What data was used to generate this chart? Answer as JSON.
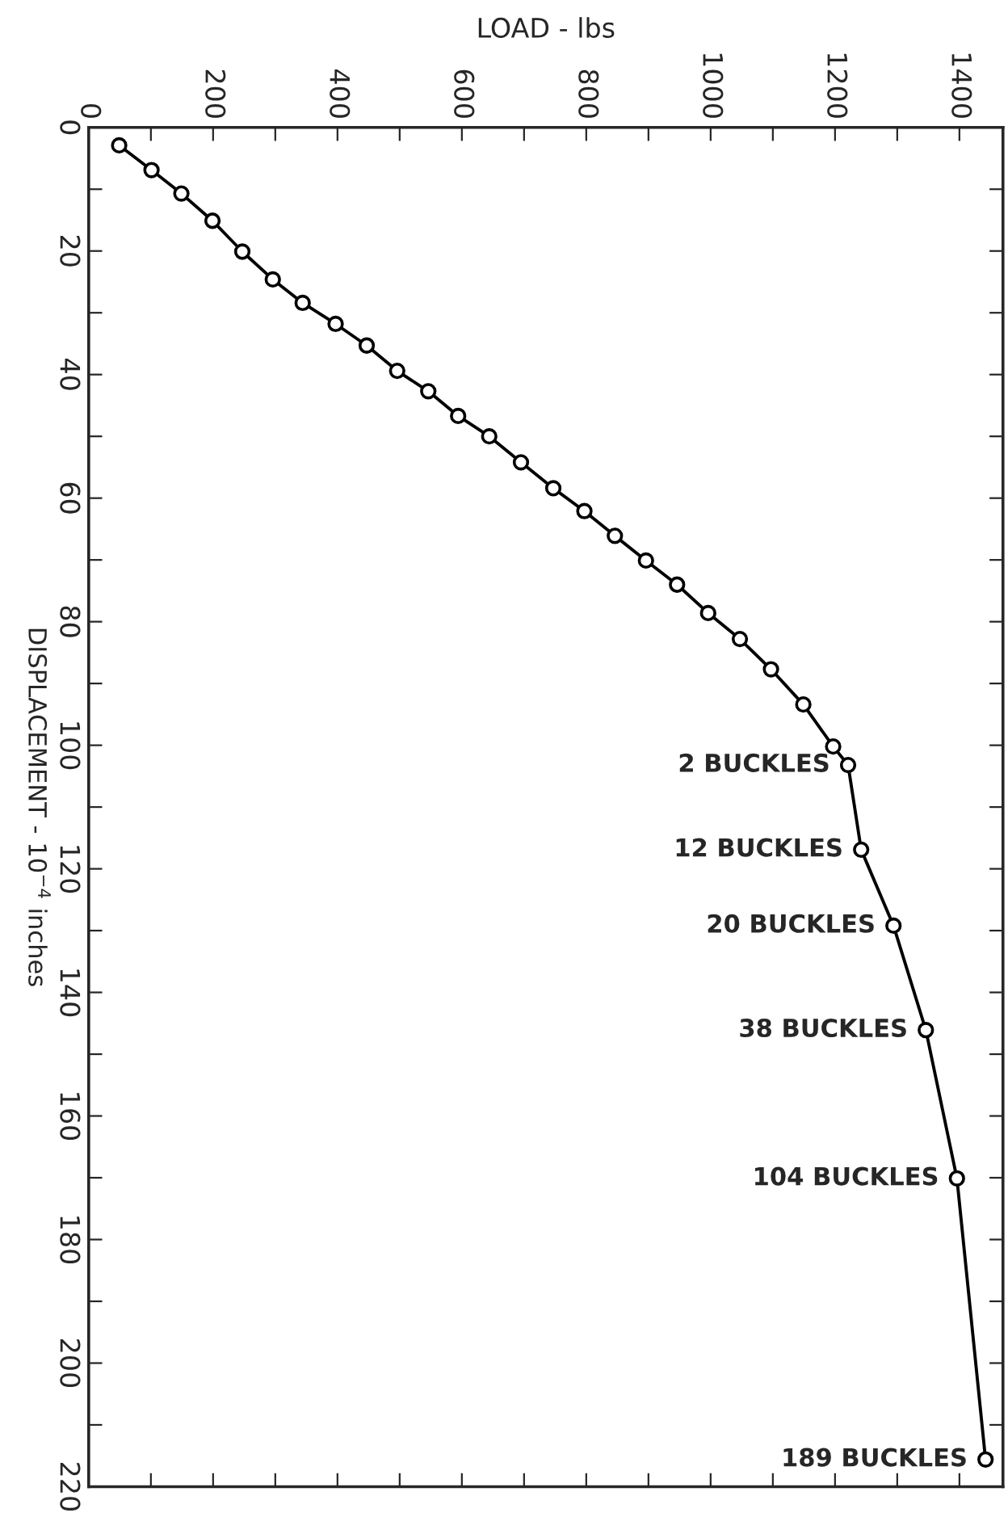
{
  "chart_data": {
    "type": "line",
    "xlabel": "LOAD - lbs",
    "ylabel": "DISPLACEMENT - 10$^{−4}$ inches",
    "series": [
      {
        "color": "#000000",
        "x": [
          49,
          101,
          149,
          199,
          247,
          296,
          344,
          397,
          447,
          496,
          546,
          594,
          644,
          695,
          747,
          797,
          846,
          896,
          946,
          996,
          1047,
          1097,
          1149,
          1197,
          1221,
          1242,
          1294,
          1346,
          1396,
          1442
        ],
        "values": [
          2.9,
          6.9,
          10.7,
          15.1,
          20.1,
          24.6,
          28.4,
          31.8,
          35.3,
          39.4,
          42.7,
          46.7,
          50.0,
          54.2,
          58.4,
          62.1,
          66.1,
          70.1,
          74.0,
          78.6,
          82.8,
          87.7,
          93.4,
          100.2,
          103.2,
          116.9,
          129.2,
          146.1,
          170.1,
          215.6
        ]
      }
    ],
    "xlim": [
      0,
      1470
    ],
    "ylim": [
      220,
      0
    ],
    "xticks": [
      0,
      {
        "value": 100,
        "label": null
      },
      200,
      {
        "value": 300,
        "label": null
      },
      400,
      {
        "value": 500,
        "label": null
      },
      600,
      {
        "value": 700,
        "label": null
      },
      800,
      {
        "value": 900,
        "label": null
      },
      1000,
      {
        "value": 1100,
        "label": null
      },
      1200,
      {
        "value": 1300,
        "label": null
      },
      1400
    ],
    "yticks": [
      0,
      {
        "value": 10,
        "label": null
      },
      20,
      {
        "value": 30,
        "label": null
      },
      40,
      {
        "value": 50,
        "label": null
      },
      60,
      {
        "value": 70,
        "label": null
      },
      80,
      {
        "value": 90,
        "label": null
      },
      100,
      {
        "value": 110,
        "label": null
      },
      120,
      {
        "value": 130,
        "label": null
      },
      140,
      {
        "value": 150,
        "label": null
      },
      160,
      {
        "value": 170,
        "label": null
      },
      180,
      {
        "value": 190,
        "label": null
      },
      200,
      {
        "value": 210,
        "label": null
      },
      220
    ],
    "marker": "circle",
    "line_style": "solid",
    "grid": false,
    "legend": false,
    "annotations": [
      {
        "text": "2 BUCKLES",
        "x": 1221,
        "y": 103.2
      },
      {
        "text": "12 BUCKLES",
        "x": 1242,
        "y": 116.9
      },
      {
        "text": "20 BUCKLES",
        "x": 1294,
        "y": 129.2
      },
      {
        "text": "38 BUCKLES",
        "x": 1346,
        "y": 146.1
      },
      {
        "text": "104 BUCKLES",
        "x": 1396,
        "y": 170.1
      },
      {
        "text": "189 BUCKLES",
        "x": 1442,
        "y": 215.6
      }
    ]
  }
}
